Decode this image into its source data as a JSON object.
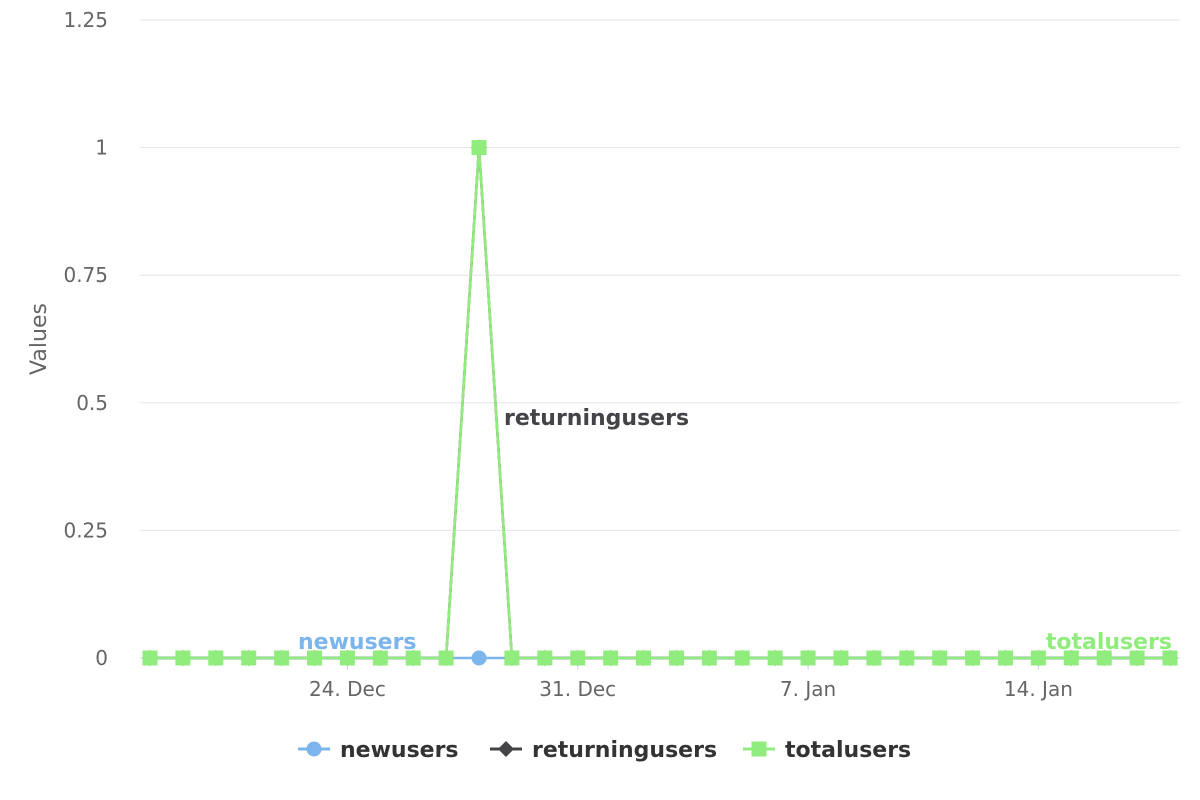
{
  "chart_data": {
    "type": "line",
    "title": "",
    "xlabel": "",
    "ylabel": "Values",
    "x_tick_labels": [
      "24. Dec",
      "31. Dec",
      "7. Jan",
      "14. Jan"
    ],
    "x_tick_dates": [
      "2023-12-24",
      "2023-12-31",
      "2024-01-07",
      "2024-01-14"
    ],
    "x_range": [
      "2023-12-18",
      "2024-01-18"
    ],
    "y_tick_labels": [
      "0",
      "0.25",
      "0.5",
      "0.75",
      "1",
      "1.25"
    ],
    "ylim": [
      0,
      1.25
    ],
    "grid": true,
    "legend_position": "bottom-center",
    "x": [
      "2023-12-18",
      "2023-12-19",
      "2023-12-20",
      "2023-12-21",
      "2023-12-22",
      "2023-12-23",
      "2023-12-24",
      "2023-12-25",
      "2023-12-26",
      "2023-12-27",
      "2023-12-28",
      "2023-12-29",
      "2023-12-30",
      "2023-12-31",
      "2024-01-01",
      "2024-01-02",
      "2024-01-03",
      "2024-01-04",
      "2024-01-05",
      "2024-01-06",
      "2024-01-07",
      "2024-01-08",
      "2024-01-09",
      "2024-01-10",
      "2024-01-11",
      "2024-01-12",
      "2024-01-13",
      "2024-01-14",
      "2024-01-15",
      "2024-01-16",
      "2024-01-17",
      "2024-01-18"
    ],
    "series": [
      {
        "name": "newusers",
        "color": "#7cb5ec",
        "marker": "circle",
        "values": [
          0,
          0,
          0,
          0,
          0,
          0,
          0,
          0,
          0,
          0,
          0,
          0,
          0,
          0,
          0,
          0,
          0,
          0,
          0,
          0,
          0,
          0,
          0,
          0,
          0,
          0,
          0,
          0,
          0,
          0,
          0,
          0
        ]
      },
      {
        "name": "returningusers",
        "color": "#434348",
        "marker": "diamond",
        "values": [
          0,
          0,
          0,
          0,
          0,
          0,
          0,
          0,
          0,
          0,
          1,
          0,
          0,
          0,
          0,
          0,
          0,
          0,
          0,
          0,
          0,
          0,
          0,
          0,
          0,
          0,
          0,
          0,
          0,
          0,
          0,
          0
        ]
      },
      {
        "name": "totalusers",
        "color": "#90ed7d",
        "marker": "square",
        "values": [
          0,
          0,
          0,
          0,
          0,
          0,
          0,
          0,
          0,
          0,
          1,
          0,
          0,
          0,
          0,
          0,
          0,
          0,
          0,
          0,
          0,
          0,
          0,
          0,
          0,
          0,
          0,
          0,
          0,
          0,
          0,
          0
        ]
      }
    ]
  }
}
